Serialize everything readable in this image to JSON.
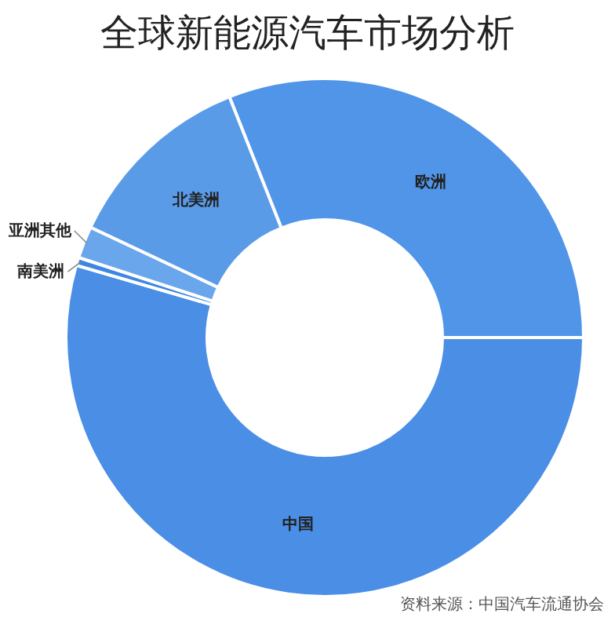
{
  "chart_data": {
    "type": "donut",
    "title": "全球新能源汽车市场分析",
    "categories": [
      "中国",
      "南美洲",
      "亚洲其他",
      "北美洲",
      "欧洲"
    ],
    "values": [
      54.5,
      0.5,
      2,
      12,
      31
    ],
    "colors": [
      "#4a8ee6",
      "#3e87e0",
      "#6aa6ec",
      "#5a9be8",
      "#5095e8"
    ],
    "annotations": [
      "资料来源：中国汽车流通协会"
    ]
  }
}
